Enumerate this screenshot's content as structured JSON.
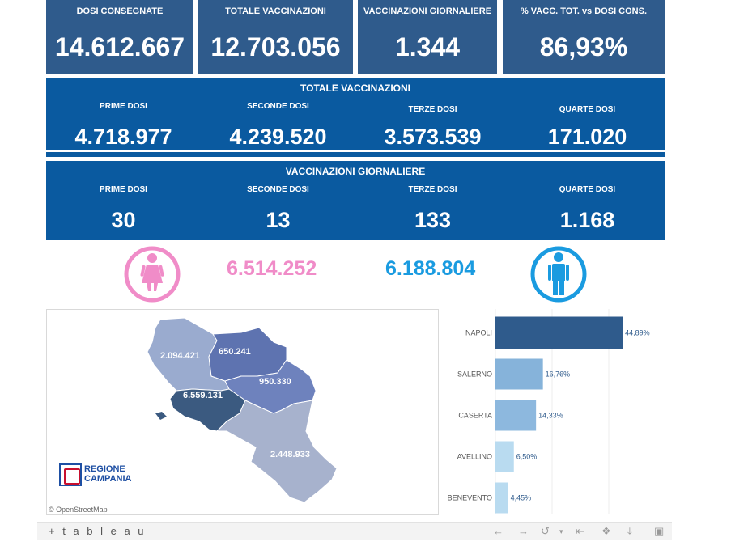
{
  "kpis": [
    {
      "label": "DOSI  CONSEGNATE",
      "value": "14.612.667"
    },
    {
      "label": "TOTALE VACCINAZIONI",
      "value": "12.703.056"
    },
    {
      "label": "VACCINAZIONI GIORNALIERE",
      "value": "1.344"
    },
    {
      "label": "% VACC. TOT. vs DOSI CONS.",
      "value": "86,93%"
    }
  ],
  "totale": {
    "title": "TOTALE VACCINAZIONI",
    "cols": [
      {
        "label": "PRIME DOSI",
        "value": "4.718.977"
      },
      {
        "label": "SECONDE DOSI",
        "value": "4.239.520"
      },
      {
        "label": "TERZE DOSI",
        "value": "3.573.539"
      },
      {
        "label": "QUARTE DOSI",
        "value": "171.020"
      }
    ]
  },
  "giornaliere": {
    "title": "VACCINAZIONI GIORNALIERE",
    "cols": [
      {
        "label": "PRIME DOSI",
        "value": "30"
      },
      {
        "label": "SECONDE DOSI",
        "value": "13"
      },
      {
        "label": "TERZE DOSI",
        "value": "133"
      },
      {
        "label": "QUARTE DOSI",
        "value": "1.168"
      }
    ]
  },
  "gender": {
    "female_value": "6.514.252",
    "male_value": "6.188.804",
    "female_color": "#f08cc8",
    "male_color": "#1a9be0"
  },
  "map": {
    "regions": [
      {
        "name": "caserta",
        "value": "2.094.421"
      },
      {
        "name": "benevento",
        "value": "650.241"
      },
      {
        "name": "avellino",
        "value": "950.330"
      },
      {
        "name": "napoli",
        "value": "6.559.131"
      },
      {
        "name": "salerno",
        "value": "2.448.933"
      }
    ],
    "logo_line1": "REGIONE",
    "logo_line2": "CAMPANIA",
    "attribution": "© OpenStreetMap"
  },
  "chart_data": {
    "type": "bar",
    "orientation": "horizontal",
    "categories": [
      "NAPOLI",
      "SALERNO",
      "CASERTA",
      "AVELLINO",
      "BENEVENTO"
    ],
    "values": [
      44.89,
      16.76,
      14.33,
      6.5,
      4.45
    ],
    "value_labels": [
      "44,89%",
      "16,76%",
      "14,33%",
      "6,50%",
      "4,45%"
    ],
    "colors": [
      "#2f5b8c",
      "#86b3da",
      "#8db8de",
      "#b9dbf0",
      "#b9dbf0"
    ],
    "xlim": [
      0,
      60
    ],
    "grid": true
  },
  "toolbar": {
    "brand": "+ t a b l e a u"
  }
}
